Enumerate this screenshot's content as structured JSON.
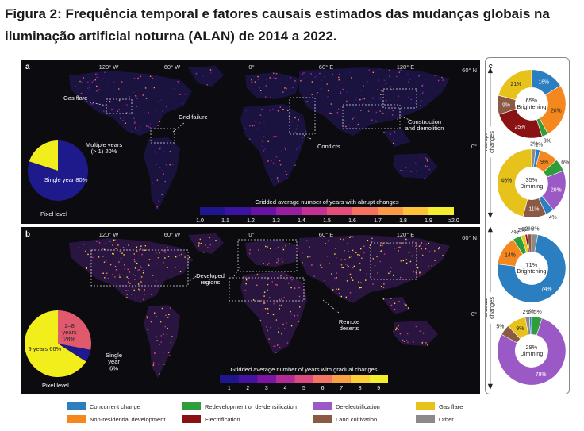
{
  "title": "Figura 2: Frequência temporal e fatores causais estimados das mudanças globais na iluminação artificial noturna (ALAN) de 2014 a 2022.",
  "lon_labels": [
    "120° W",
    "60° W",
    "0°",
    "60° E",
    "120° E"
  ],
  "lat_labels": [
    "60° N",
    "0°"
  ],
  "panel_a": {
    "letter": "a",
    "annotations": {
      "gas_flare": "Gas flare",
      "grid_failure": "Grid failure",
      "conflicts": "Conflicts",
      "construction": "Construction\nand demolition"
    },
    "pie": {
      "slices": [
        {
          "label": "Single year",
          "pct_text": "80%",
          "value": 80,
          "color": "#1f1a8c"
        },
        {
          "label": "Multiple years\n(> 1)",
          "pct_text": "20%",
          "value": 20,
          "color": "#f2ee1c"
        }
      ],
      "caption": "Pixel level"
    },
    "colorbar": {
      "title": "Gridded average number of years with abrupt changes",
      "ticks": [
        "1.0",
        "1.1",
        "1.2",
        "1.3",
        "1.4",
        "1.5",
        "1.6",
        "1.7",
        "1.8",
        "1.9",
        "≥2.0"
      ],
      "colors": [
        "#1d168c",
        "#3b13a0",
        "#6a11a6",
        "#9a1fa0",
        "#c23393",
        "#e0507a",
        "#f4735f",
        "#fb9b47",
        "#fcc33a",
        "#f4ee2f"
      ]
    }
  },
  "panel_b": {
    "letter": "b",
    "annotations": {
      "developed": "Developed\nregions",
      "remote": "Remote\ndeserts"
    },
    "pie": {
      "slices": [
        {
          "label": "2–8\nyears",
          "pct_text": "28%",
          "value": 28,
          "color": "#e05a6e"
        },
        {
          "label": "Single\nyear",
          "pct_text": "6%",
          "value": 6,
          "color": "#1f1a8c"
        },
        {
          "label": "9 years",
          "pct_text": "66%",
          "value": 66,
          "color": "#f2ee1c"
        }
      ],
      "caption": "Pixel level"
    },
    "colorbar": {
      "title": "Gridded average number of years with gradual changes",
      "ticks": [
        "1",
        "2",
        "3",
        "4",
        "5",
        "6",
        "7",
        "8",
        "9"
      ],
      "colors": [
        "#1d168c",
        "#4413a4",
        "#7a15a6",
        "#b12a98",
        "#da4a80",
        "#f37463",
        "#fba145",
        "#fccf36",
        "#f4ee2f"
      ]
    }
  },
  "panel_c": {
    "letter": "c",
    "side_labels": [
      "Abrupt\nchanges",
      "Gradual\nchanges"
    ],
    "donuts": [
      {
        "center": "65%\nBrightening",
        "slices": [
          {
            "cat": "concurrent",
            "value": 16,
            "text": "16%"
          },
          {
            "cat": "nonres",
            "value": 26,
            "text": "26%"
          },
          {
            "cat": "redev",
            "value": 3,
            "text": "3%"
          },
          {
            "cat": "electrification",
            "value": 25,
            "text": "25%"
          },
          {
            "cat": "land",
            "value": 9,
            "text": "9%"
          },
          {
            "cat": "gasflare",
            "value": 21,
            "text": "21%"
          }
        ]
      },
      {
        "center": "35%\nDimming",
        "slices": [
          {
            "cat": "other",
            "value": 2,
            "text": "2%"
          },
          {
            "cat": "concurrent",
            "value": 2,
            "text": "2%"
          },
          {
            "cat": "nonres",
            "value": 9,
            "text": "9%"
          },
          {
            "cat": "redev",
            "value": 6,
            "text": "6%"
          },
          {
            "cat": "deelectrification",
            "value": 20,
            "text": "20%"
          },
          {
            "cat": "concurrent",
            "value": 4,
            "text": "4%"
          },
          {
            "cat": "land",
            "value": 11,
            "text": "11%"
          },
          {
            "cat": "gasflare",
            "value": 46,
            "text": "46%"
          }
        ]
      },
      {
        "center": "71%\nBrightening",
        "slices": [
          {
            "cat": "other",
            "value": 3,
            "text": "3%"
          },
          {
            "cat": "concurrent",
            "value": 74,
            "text": "74%"
          },
          {
            "cat": "nonres",
            "value": 14,
            "text": "14%"
          },
          {
            "cat": "redev",
            "value": 4,
            "text": "4%"
          },
          {
            "cat": "gasflare",
            "value": 2,
            "text": "2%"
          },
          {
            "cat": "electrification",
            "value": 1,
            "text": "1%"
          },
          {
            "cat": "land",
            "value": 2,
            "text": "2%"
          }
        ]
      },
      {
        "center": "29%\nDimming",
        "slices": [
          {
            "cat": "redev",
            "value": 5,
            "text": "5%"
          },
          {
            "cat": "deelectrification",
            "value": 78,
            "text": "78%"
          },
          {
            "cat": "land",
            "value": 5,
            "text": "5%"
          },
          {
            "cat": "gasflare",
            "value": 9,
            "text": "9%"
          },
          {
            "cat": "other",
            "value": 2,
            "text": "2%"
          },
          {
            "cat": "concurrent",
            "value": 1,
            "text": "1%"
          }
        ]
      }
    ]
  },
  "legend": [
    {
      "key": "concurrent",
      "label": "Concurrent change",
      "color": "#2b7fc1"
    },
    {
      "key": "redev",
      "label": "Redevelopment or de-densification",
      "color": "#2e9e3a"
    },
    {
      "key": "deelectrification",
      "label": "De-electrification",
      "color": "#9b59c6"
    },
    {
      "key": "gasflare",
      "label": "Gas flare",
      "color": "#e6c21a"
    },
    {
      "key": "nonres",
      "label": "Non-residential development",
      "color": "#f5871f"
    },
    {
      "key": "electrification",
      "label": "Electrification",
      "color": "#8b1212"
    },
    {
      "key": "land",
      "label": "Land cultivation",
      "color": "#8a5a44"
    },
    {
      "key": "other",
      "label": "Other",
      "color": "#8a8a8a"
    }
  ]
}
